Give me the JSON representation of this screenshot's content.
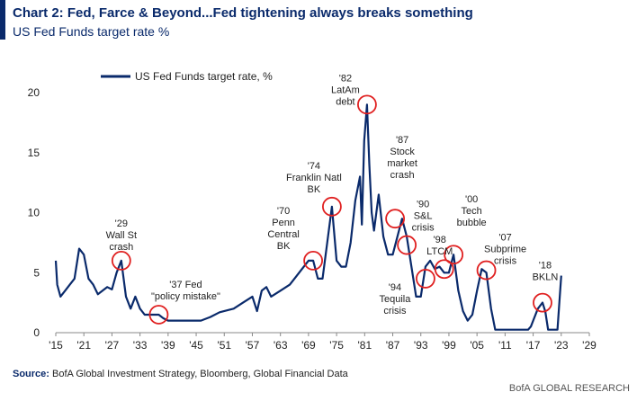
{
  "header": {
    "title": "Chart 2: Fed, Farce & Beyond...Fed tightening always breaks something",
    "subtitle": "US Fed Funds target rate %"
  },
  "footer": {
    "source_label": "Source:",
    "source_text": "BofA Global Investment Strategy, Bloomberg, Global Financial Data",
    "brand": "BofA GLOBAL RESEARCH"
  },
  "colors": {
    "line": "#0a2a6b",
    "circle": "#e02020",
    "axis": "#888888"
  },
  "chart_data": {
    "type": "line",
    "title": "",
    "xlabel": "",
    "ylabel": "",
    "xlim": [
      1915,
      2029
    ],
    "ylim": [
      0,
      20
    ],
    "grid": false,
    "legend_position": "top-left",
    "x_ticks": [
      "'15",
      "'21",
      "'27",
      "'33",
      "'39",
      "'45",
      "'51",
      "'57",
      "'63",
      "'69",
      "'75",
      "'81",
      "'87",
      "'93",
      "'99",
      "'05",
      "'11",
      "'17",
      "'23",
      "'29"
    ],
    "x_tick_values": [
      1915,
      1921,
      1927,
      1933,
      1939,
      1945,
      1951,
      1957,
      1963,
      1969,
      1975,
      1981,
      1987,
      1993,
      1999,
      2005,
      2011,
      2017,
      2023,
      2029
    ],
    "y_ticks": [
      "0",
      "5",
      "10",
      "15",
      "20"
    ],
    "y_tick_values": [
      0,
      5,
      10,
      15,
      20
    ],
    "series": [
      {
        "name": "US Fed Funds target rate, %",
        "points": [
          [
            1915,
            6.0
          ],
          [
            1915.3,
            4.0
          ],
          [
            1916,
            3.0
          ],
          [
            1917,
            3.5
          ],
          [
            1918,
            4.0
          ],
          [
            1919,
            4.5
          ],
          [
            1920,
            7.0
          ],
          [
            1921,
            6.5
          ],
          [
            1922,
            4.5
          ],
          [
            1923,
            4.0
          ],
          [
            1924,
            3.2
          ],
          [
            1925,
            3.5
          ],
          [
            1926,
            3.8
          ],
          [
            1927,
            3.6
          ],
          [
            1928,
            5.0
          ],
          [
            1929,
            6.0
          ],
          [
            1930,
            3.0
          ],
          [
            1931,
            2.0
          ],
          [
            1932,
            3.0
          ],
          [
            1933,
            2.0
          ],
          [
            1934,
            1.5
          ],
          [
            1935,
            1.5
          ],
          [
            1936,
            1.5
          ],
          [
            1937,
            1.5
          ],
          [
            1938,
            1.2
          ],
          [
            1939,
            1.0
          ],
          [
            1942,
            1.0
          ],
          [
            1946,
            1.0
          ],
          [
            1948,
            1.3
          ],
          [
            1950,
            1.7
          ],
          [
            1953,
            2.0
          ],
          [
            1955,
            2.5
          ],
          [
            1957,
            3.0
          ],
          [
            1958,
            1.8
          ],
          [
            1959,
            3.5
          ],
          [
            1960,
            3.8
          ],
          [
            1961,
            3.0
          ],
          [
            1963,
            3.5
          ],
          [
            1965,
            4.0
          ],
          [
            1966,
            4.5
          ],
          [
            1968,
            5.5
          ],
          [
            1969,
            6.0
          ],
          [
            1970,
            6.0
          ],
          [
            1971,
            4.5
          ],
          [
            1972,
            4.5
          ],
          [
            1973,
            7.5
          ],
          [
            1974,
            10.5
          ],
          [
            1975,
            6.0
          ],
          [
            1976,
            5.5
          ],
          [
            1977,
            5.5
          ],
          [
            1978,
            7.5
          ],
          [
            1979,
            11.0
          ],
          [
            1980,
            13.0
          ],
          [
            1980.4,
            9.0
          ],
          [
            1980.9,
            16.0
          ],
          [
            1981.5,
            19.0
          ],
          [
            1982,
            14.0
          ],
          [
            1982.5,
            10.0
          ],
          [
            1983,
            8.5
          ],
          [
            1984,
            11.5
          ],
          [
            1985,
            8.0
          ],
          [
            1986,
            6.5
          ],
          [
            1987,
            6.5
          ],
          [
            1988,
            8.0
          ],
          [
            1989,
            9.5
          ],
          [
            1990,
            8.0
          ],
          [
            1991,
            5.5
          ],
          [
            1992,
            3.0
          ],
          [
            1993,
            3.0
          ],
          [
            1994,
            5.5
          ],
          [
            1995,
            6.0
          ],
          [
            1996,
            5.3
          ],
          [
            1997,
            5.5
          ],
          [
            1998,
            5.0
          ],
          [
            1999,
            5.0
          ],
          [
            2000,
            6.5
          ],
          [
            2001,
            3.5
          ],
          [
            2002,
            1.8
          ],
          [
            2003,
            1.0
          ],
          [
            2004,
            1.5
          ],
          [
            2005,
            3.5
          ],
          [
            2006,
            5.3
          ],
          [
            2007,
            5.0
          ],
          [
            2008,
            2.0
          ],
          [
            2008.9,
            0.25
          ],
          [
            2015.9,
            0.25
          ],
          [
            2016.5,
            0.5
          ],
          [
            2017,
            1.0
          ],
          [
            2018,
            2.0
          ],
          [
            2019,
            2.5
          ],
          [
            2019.6,
            1.75
          ],
          [
            2020.2,
            0.25
          ],
          [
            2022.2,
            0.25
          ],
          [
            2022.6,
            2.5
          ],
          [
            2023,
            4.75
          ]
        ]
      }
    ],
    "annotations": [
      {
        "label": "'29\nWall St\ncrash",
        "x": 1929,
        "y": 6.0
      },
      {
        "label": "'37 Fed\n\"policy mistake\"",
        "x": 1937,
        "y": 1.5
      },
      {
        "label": "'70\nPenn\nCentral\nBK",
        "x": 1970,
        "y": 6.0
      },
      {
        "label": "'74\nFranklin Natl\nBK",
        "x": 1974,
        "y": 10.5
      },
      {
        "label": "'82\nLatAm\ndebt",
        "x": 1981.5,
        "y": 19.0
      },
      {
        "label": "'87\nStock\nmarket\ncrash",
        "x": 1987.5,
        "y": 9.5
      },
      {
        "label": "'90\nS&L\ncrisis",
        "x": 1990,
        "y": 7.3
      },
      {
        "label": "'94\nTequila\ncrisis",
        "x": 1994,
        "y": 4.5
      },
      {
        "label": "'98\nLTCM",
        "x": 1998,
        "y": 5.3
      },
      {
        "label": "'00\nTech\nbubble",
        "x": 2000,
        "y": 6.5
      },
      {
        "label": "'07\nSubprime\ncrisis",
        "x": 2007,
        "y": 5.2
      },
      {
        "label": "'18\nBKLN",
        "x": 2019,
        "y": 2.5
      }
    ]
  }
}
